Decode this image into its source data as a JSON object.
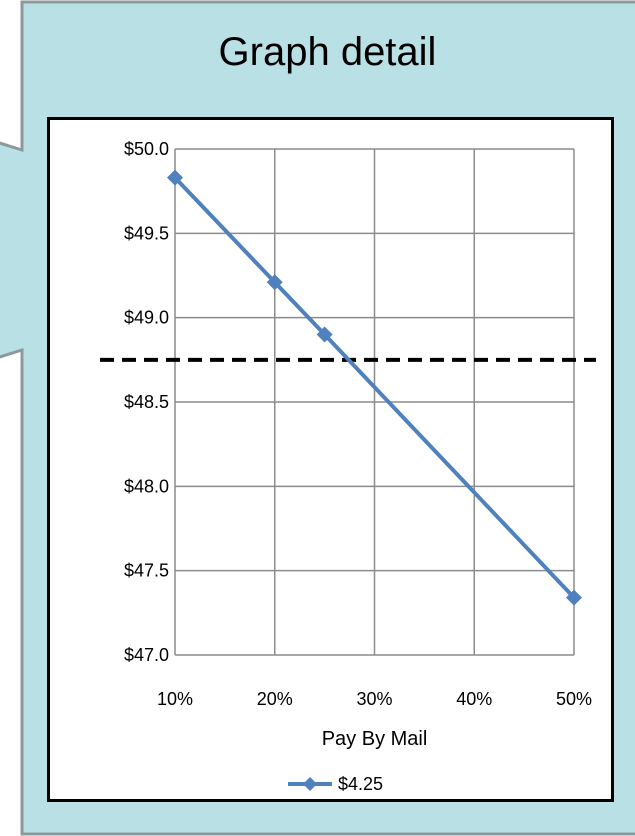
{
  "callout": {
    "title": "Graph detail",
    "background": "#b9e0e4",
    "border": "#8d9a9c"
  },
  "chart_data": {
    "type": "line",
    "title": "",
    "xlabel": "Pay By Mail",
    "ylabel": "",
    "x_ticks": [
      "10%",
      "20%",
      "30%",
      "40%",
      "50%"
    ],
    "y_ticks": [
      "$47.0",
      "$47.5",
      "$48.0",
      "$48.5",
      "$49.0",
      "$49.5",
      "$50.0"
    ],
    "xlim": [
      0.1,
      0.5
    ],
    "ylim": [
      47.0,
      50.0
    ],
    "grid": true,
    "legend_position": "bottom",
    "series": [
      {
        "name": "$4.25",
        "color": "#4f81bd",
        "marker": "diamond",
        "points": [
          {
            "x": 0.1,
            "y": 49.83
          },
          {
            "x": 0.2,
            "y": 49.21
          },
          {
            "x": 0.25,
            "y": 48.9
          },
          {
            "x": 0.5,
            "y": 47.34
          }
        ]
      }
    ],
    "reference_line": {
      "y": 48.75,
      "style": "dashed",
      "color": "#000000"
    }
  }
}
